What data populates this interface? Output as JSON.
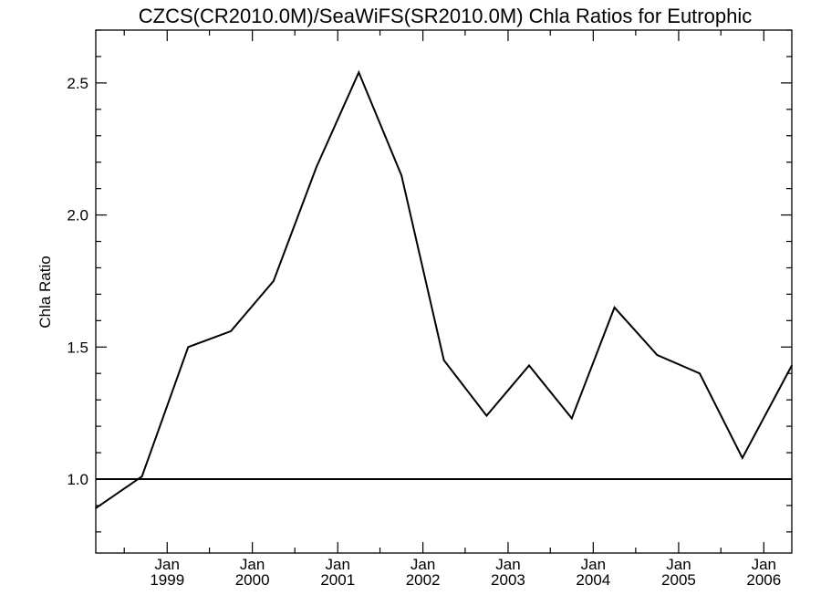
{
  "chart_data": {
    "type": "line",
    "title": "CZCS(CR2010.0M)/SeaWiFS(SR2010.0M)  Chla Ratios for Eutrophic",
    "xlabel": "",
    "ylabel": "Chla Ratio",
    "ylim": [
      0.72,
      2.7
    ],
    "xlim": [
      "1998-03-01",
      "2006-05-01"
    ],
    "y_ticks": [
      {
        "value": 1.0,
        "label": "1.0"
      },
      {
        "value": 1.5,
        "label": "1.5"
      },
      {
        "value": 2.0,
        "label": "2.0"
      },
      {
        "value": 2.5,
        "label": "2.5"
      }
    ],
    "x_ticks": [
      {
        "date": "1999-01-01",
        "month": "Jan",
        "year": "1999"
      },
      {
        "date": "2000-01-01",
        "month": "Jan",
        "year": "2000"
      },
      {
        "date": "2001-01-01",
        "month": "Jan",
        "year": "2001"
      },
      {
        "date": "2002-01-01",
        "month": "Jan",
        "year": "2002"
      },
      {
        "date": "2003-01-01",
        "month": "Jan",
        "year": "2003"
      },
      {
        "date": "2004-01-01",
        "month": "Jan",
        "year": "2004"
      },
      {
        "date": "2005-01-01",
        "month": "Jan",
        "year": "2005"
      },
      {
        "date": "2006-01-01",
        "month": "Jan",
        "year": "2006"
      }
    ],
    "reference_line": {
      "y": 1.0
    },
    "grid": false,
    "series": [
      {
        "x": [
          "1998-03-01",
          "1998-09-15",
          "1999-04-01",
          "1999-10-01",
          "2000-04-01",
          "2000-10-01",
          "2001-04-01",
          "2001-10-01",
          "2002-04-01",
          "2002-10-01",
          "2003-04-01",
          "2003-10-01",
          "2004-04-01",
          "2004-10-01",
          "2005-04-01",
          "2005-10-01",
          "2006-05-01"
        ],
        "values": [
          0.89,
          1.01,
          1.5,
          1.56,
          1.75,
          2.18,
          2.54,
          2.15,
          1.45,
          1.24,
          1.43,
          1.23,
          1.65,
          1.47,
          1.4,
          1.08,
          1.43
        ],
        "color": "#000000"
      }
    ]
  }
}
